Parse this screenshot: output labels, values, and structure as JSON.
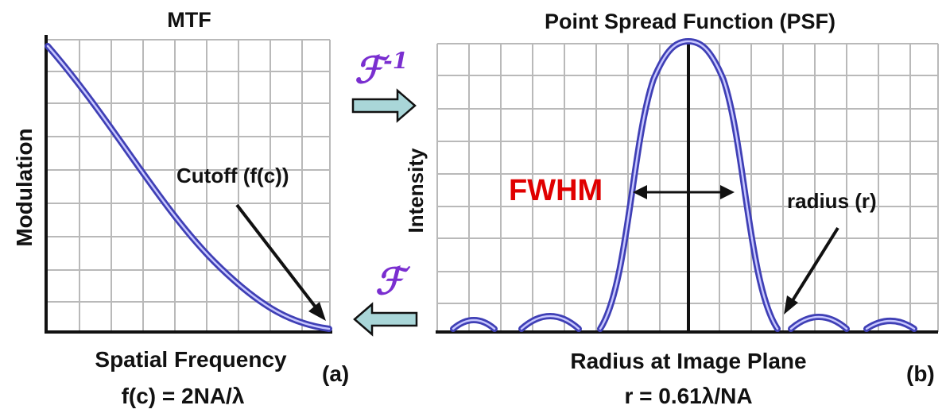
{
  "colors": {
    "curve": "#3f3fb5",
    "curve_highlight": "#c8c8ff",
    "arrow_fill": "#a9d6d8",
    "script_letter": "#7a2fd0",
    "fwhm": "#e00000"
  },
  "mtf": {
    "title": "MTF",
    "y_label": "Modulation",
    "x_label": "Spatial Frequency",
    "formula": "f(c) = 2NA/λ",
    "cutoff_label": "Cutoff (f(c))",
    "panel_tag": "(a)"
  },
  "psf": {
    "title": "Point Spread Function (PSF)",
    "y_label": "Intensity",
    "x_label": "Radius at Image Plane",
    "formula": "r = 0.61λ/NA",
    "fwhm_label": "FWHM",
    "radius_label": "radius (r)",
    "panel_tag": "(b)"
  },
  "transforms": {
    "inverse_symbol": "ℱ",
    "inverse_exponent": "-1",
    "forward_symbol": "ℱ"
  }
}
